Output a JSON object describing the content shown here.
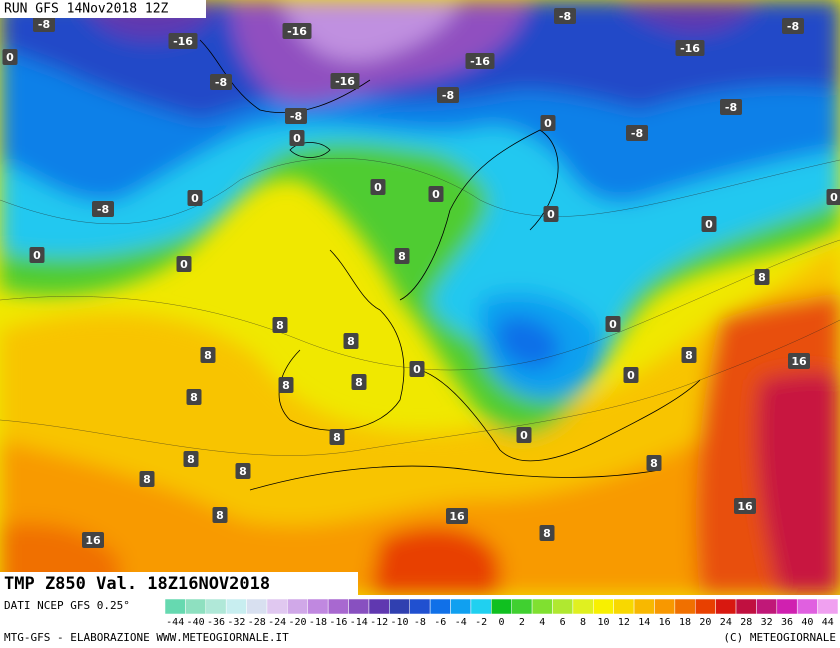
{
  "header": "RUN GFS 14Nov2018 12Z",
  "map": {
    "contour_labels": [
      "-8",
      "-16",
      "-16",
      "-8",
      "-8",
      "0",
      "-16",
      "-16",
      "-16",
      "-8",
      "-8",
      "-8",
      "-8",
      "0",
      "0",
      "-8",
      "0",
      "0",
      "-8",
      "0",
      "0",
      "0",
      "0",
      "0",
      "0",
      "8",
      "8",
      "8",
      "8",
      "0",
      "8",
      "8",
      "16",
      "8",
      "0",
      "8",
      "0",
      "8",
      "8",
      "0",
      "8",
      "8",
      "8",
      "8",
      "8",
      "16",
      "16",
      "16",
      "8"
    ]
  },
  "legend": {
    "title": "TMP Z850 Val. 18Z16NOV2018",
    "source": "DATI NCEP GFS 0.25°",
    "scale": [
      {
        "label": "-44",
        "color": "#66d9b0"
      },
      {
        "label": "-40",
        "color": "#8ee0c0"
      },
      {
        "label": "-36",
        "color": "#b0e8d8"
      },
      {
        "label": "-32",
        "color": "#c8eef0"
      },
      {
        "label": "-28",
        "color": "#d8e0f0"
      },
      {
        "label": "-24",
        "color": "#e0c8f0"
      },
      {
        "label": "-20",
        "color": "#d0a8e8"
      },
      {
        "label": "-18",
        "color": "#c088e0"
      },
      {
        "label": "-16",
        "color": "#a868d0"
      },
      {
        "label": "-14",
        "color": "#8850c0"
      },
      {
        "label": "-12",
        "color": "#6038b0"
      },
      {
        "label": "-10",
        "color": "#3040b0"
      },
      {
        "label": "-8",
        "color": "#2050d0"
      },
      {
        "label": "-6",
        "color": "#1070e8"
      },
      {
        "label": "-4",
        "color": "#10a0f0"
      },
      {
        "label": "-2",
        "color": "#20d0f0"
      },
      {
        "label": "0",
        "color": "#10c020"
      },
      {
        "label": "2",
        "color": "#40d030"
      },
      {
        "label": "4",
        "color": "#80e030"
      },
      {
        "label": "6",
        "color": "#b0e830"
      },
      {
        "label": "8",
        "color": "#e0f020"
      },
      {
        "label": "10",
        "color": "#f8f000"
      },
      {
        "label": "12",
        "color": "#f8d800"
      },
      {
        "label": "14",
        "color": "#f8b800"
      },
      {
        "label": "16",
        "color": "#f89800"
      },
      {
        "label": "18",
        "color": "#f07000"
      },
      {
        "label": "20",
        "color": "#e84000"
      },
      {
        "label": "24",
        "color": "#d81810"
      },
      {
        "label": "28",
        "color": "#c01040"
      },
      {
        "label": "32",
        "color": "#c01878"
      },
      {
        "label": "36",
        "color": "#d020b0"
      },
      {
        "label": "40",
        "color": "#e060e0"
      },
      {
        "label": "44",
        "color": "#f0a0f0"
      }
    ]
  },
  "footer": {
    "left": "MTG-GFS - ELABORAZIONE WWW.METEOGIORNALE.IT",
    "right": "(C) METEOGIORNALE"
  }
}
